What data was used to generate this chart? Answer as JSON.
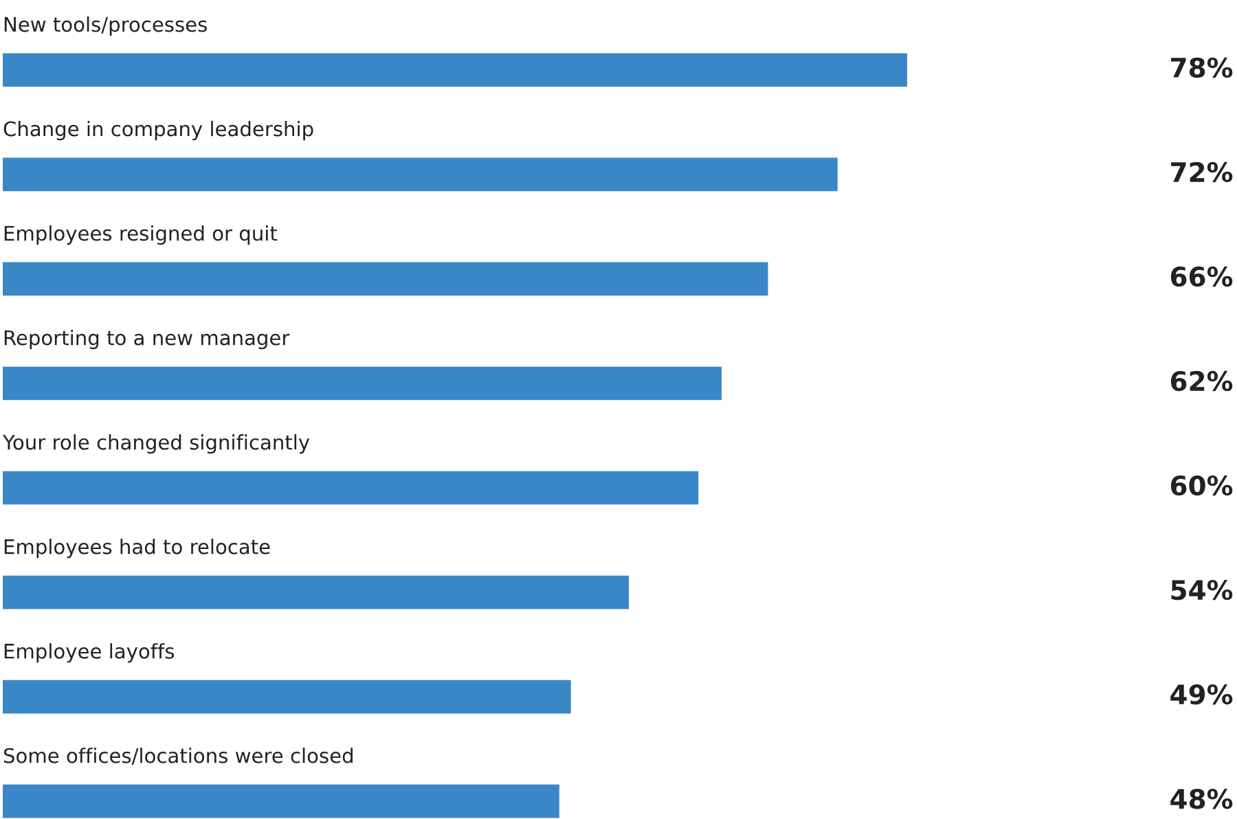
{
  "chart_data": {
    "type": "bar",
    "orientation": "horizontal",
    "categories": [
      "New tools/processes",
      "Change in company leadership",
      "Employees resigned or quit",
      "Reporting to a new manager",
      "Your role changed significantly",
      "Employees had to relocate",
      "Employee layoffs",
      "Some offices/locations were closed"
    ],
    "values": [
      78,
      72,
      66,
      62,
      60,
      54,
      49,
      48
    ],
    "value_labels": [
      "78%",
      "72%",
      "66%",
      "62%",
      "60%",
      "54%",
      "49%",
      "48%"
    ],
    "color": "#3a87c8"
  }
}
